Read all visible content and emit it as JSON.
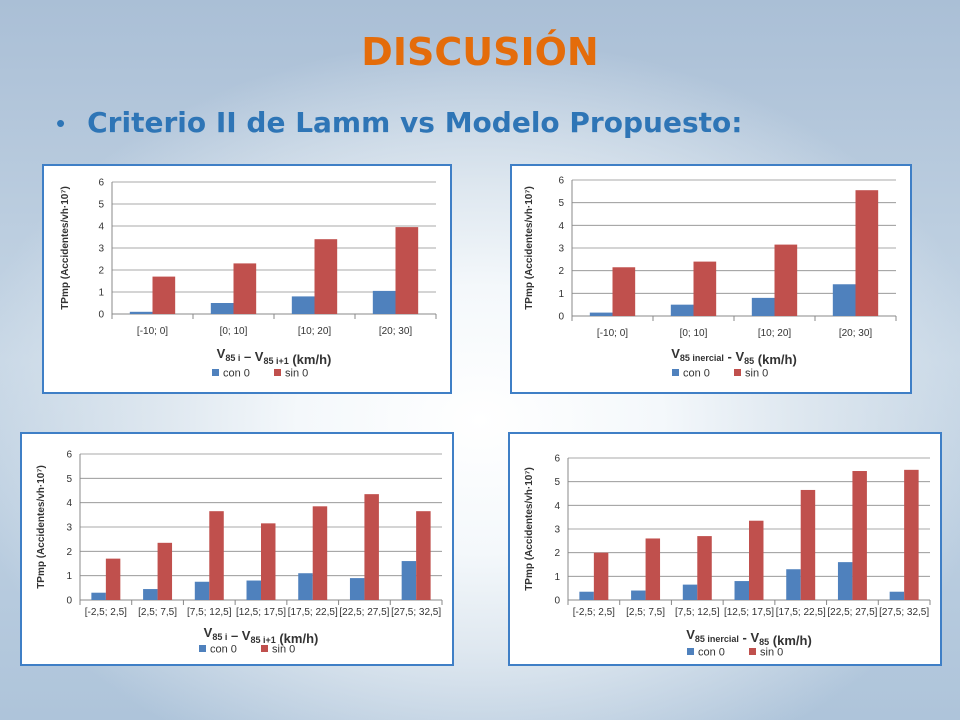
{
  "slide": {
    "title": "DISCUSIÓN",
    "bullet": "Criterio II de Lamm vs Modelo Propuesto:"
  },
  "colors": {
    "con_0": "#4f81bd",
    "sin_0": "#c0504d",
    "title": "#e46c0a",
    "bullet_text": "#2e75b6",
    "panel_border": "#3f7fc6"
  },
  "chart_data": [
    {
      "type": "bar",
      "categories": [
        "[-10; 0]",
        "[0; 10]",
        "[10; 20]",
        "[20; 30]"
      ],
      "series": [
        {
          "name": "con 0",
          "values": [
            0.1,
            0.5,
            0.8,
            1.05
          ]
        },
        {
          "name": "sin 0",
          "values": [
            1.7,
            2.3,
            3.4,
            3.95
          ]
        }
      ],
      "ylabel": "TPmp (Accidentes/vh·10⁷)",
      "xlabel": {
        "main": "V",
        "parts": [
          {
            "t": "V",
            "sub": "85 i"
          },
          {
            "t": " – V",
            "sub": "85 i+1"
          },
          {
            "t": " (km/h)",
            "sub": ""
          }
        ]
      },
      "ylim": [
        0,
        6
      ],
      "yticks": [
        0,
        1,
        2,
        3,
        4,
        5,
        6
      ],
      "grid": true,
      "legend": "bottom"
    },
    {
      "type": "bar",
      "categories": [
        "[-10; 0]",
        "[0; 10]",
        "[10; 20]",
        "[20; 30]"
      ],
      "series": [
        {
          "name": "con 0",
          "values": [
            0.15,
            0.5,
            0.8,
            1.4
          ]
        },
        {
          "name": "sin 0",
          "values": [
            2.15,
            2.4,
            3.15,
            5.55
          ]
        }
      ],
      "ylabel": "TPmp (Accidentes/vh·10⁷)",
      "xlabel": {
        "main": "V",
        "parts": [
          {
            "t": "V",
            "sub": "85 inercial"
          },
          {
            "t": " - V",
            "sub": "85"
          },
          {
            "t": " (km/h)",
            "sub": ""
          }
        ]
      },
      "ylim": [
        0,
        6
      ],
      "yticks": [
        0,
        1,
        2,
        3,
        4,
        5,
        6
      ],
      "grid": true,
      "legend": "bottom"
    },
    {
      "type": "bar",
      "categories": [
        "[-2,5; 2,5]",
        "[2,5; 7,5]",
        "[7,5; 12,5]",
        "[12,5; 17,5]",
        "[17,5; 22,5]",
        "[22,5; 27,5]",
        "[27,5; 32,5]"
      ],
      "series": [
        {
          "name": "con 0",
          "values": [
            0.3,
            0.45,
            0.75,
            0.8,
            1.1,
            0.9,
            1.6
          ]
        },
        {
          "name": "sin 0",
          "values": [
            1.7,
            2.35,
            3.65,
            3.15,
            3.85,
            4.35,
            3.65
          ]
        }
      ],
      "ylabel": "TPmp (Accidentes/vh·10⁷)",
      "xlabel": {
        "main": "V",
        "parts": [
          {
            "t": "V",
            "sub": "85 i"
          },
          {
            "t": " – V",
            "sub": "85 i+1"
          },
          {
            "t": " (km/h)",
            "sub": ""
          }
        ]
      },
      "ylim": [
        0,
        6
      ],
      "yticks": [
        0,
        1,
        2,
        3,
        4,
        5,
        6
      ],
      "grid": true,
      "legend": "bottom"
    },
    {
      "type": "bar",
      "categories": [
        "[-2,5; 2,5]",
        "[2,5; 7,5]",
        "[7,5; 12,5]",
        "[12,5; 17,5]",
        "[17,5; 22,5]",
        "[22,5; 27,5]",
        "[27,5; 32,5]"
      ],
      "series": [
        {
          "name": "con 0",
          "values": [
            0.35,
            0.4,
            0.65,
            0.8,
            1.3,
            1.6,
            0.35
          ]
        },
        {
          "name": "sin 0",
          "values": [
            2.0,
            2.6,
            2.7,
            3.35,
            4.65,
            5.45,
            5.5
          ]
        }
      ],
      "ylabel": "TPmp (Accidentes/vh·10⁷)",
      "xlabel": {
        "main": "V",
        "parts": [
          {
            "t": "V",
            "sub": "85 inercial"
          },
          {
            "t": " - V",
            "sub": "85"
          },
          {
            "t": " (km/h)",
            "sub": ""
          }
        ]
      },
      "ylim": [
        0,
        6
      ],
      "yticks": [
        0,
        1,
        2,
        3,
        4,
        5,
        6
      ],
      "grid": true,
      "legend": "bottom"
    }
  ]
}
